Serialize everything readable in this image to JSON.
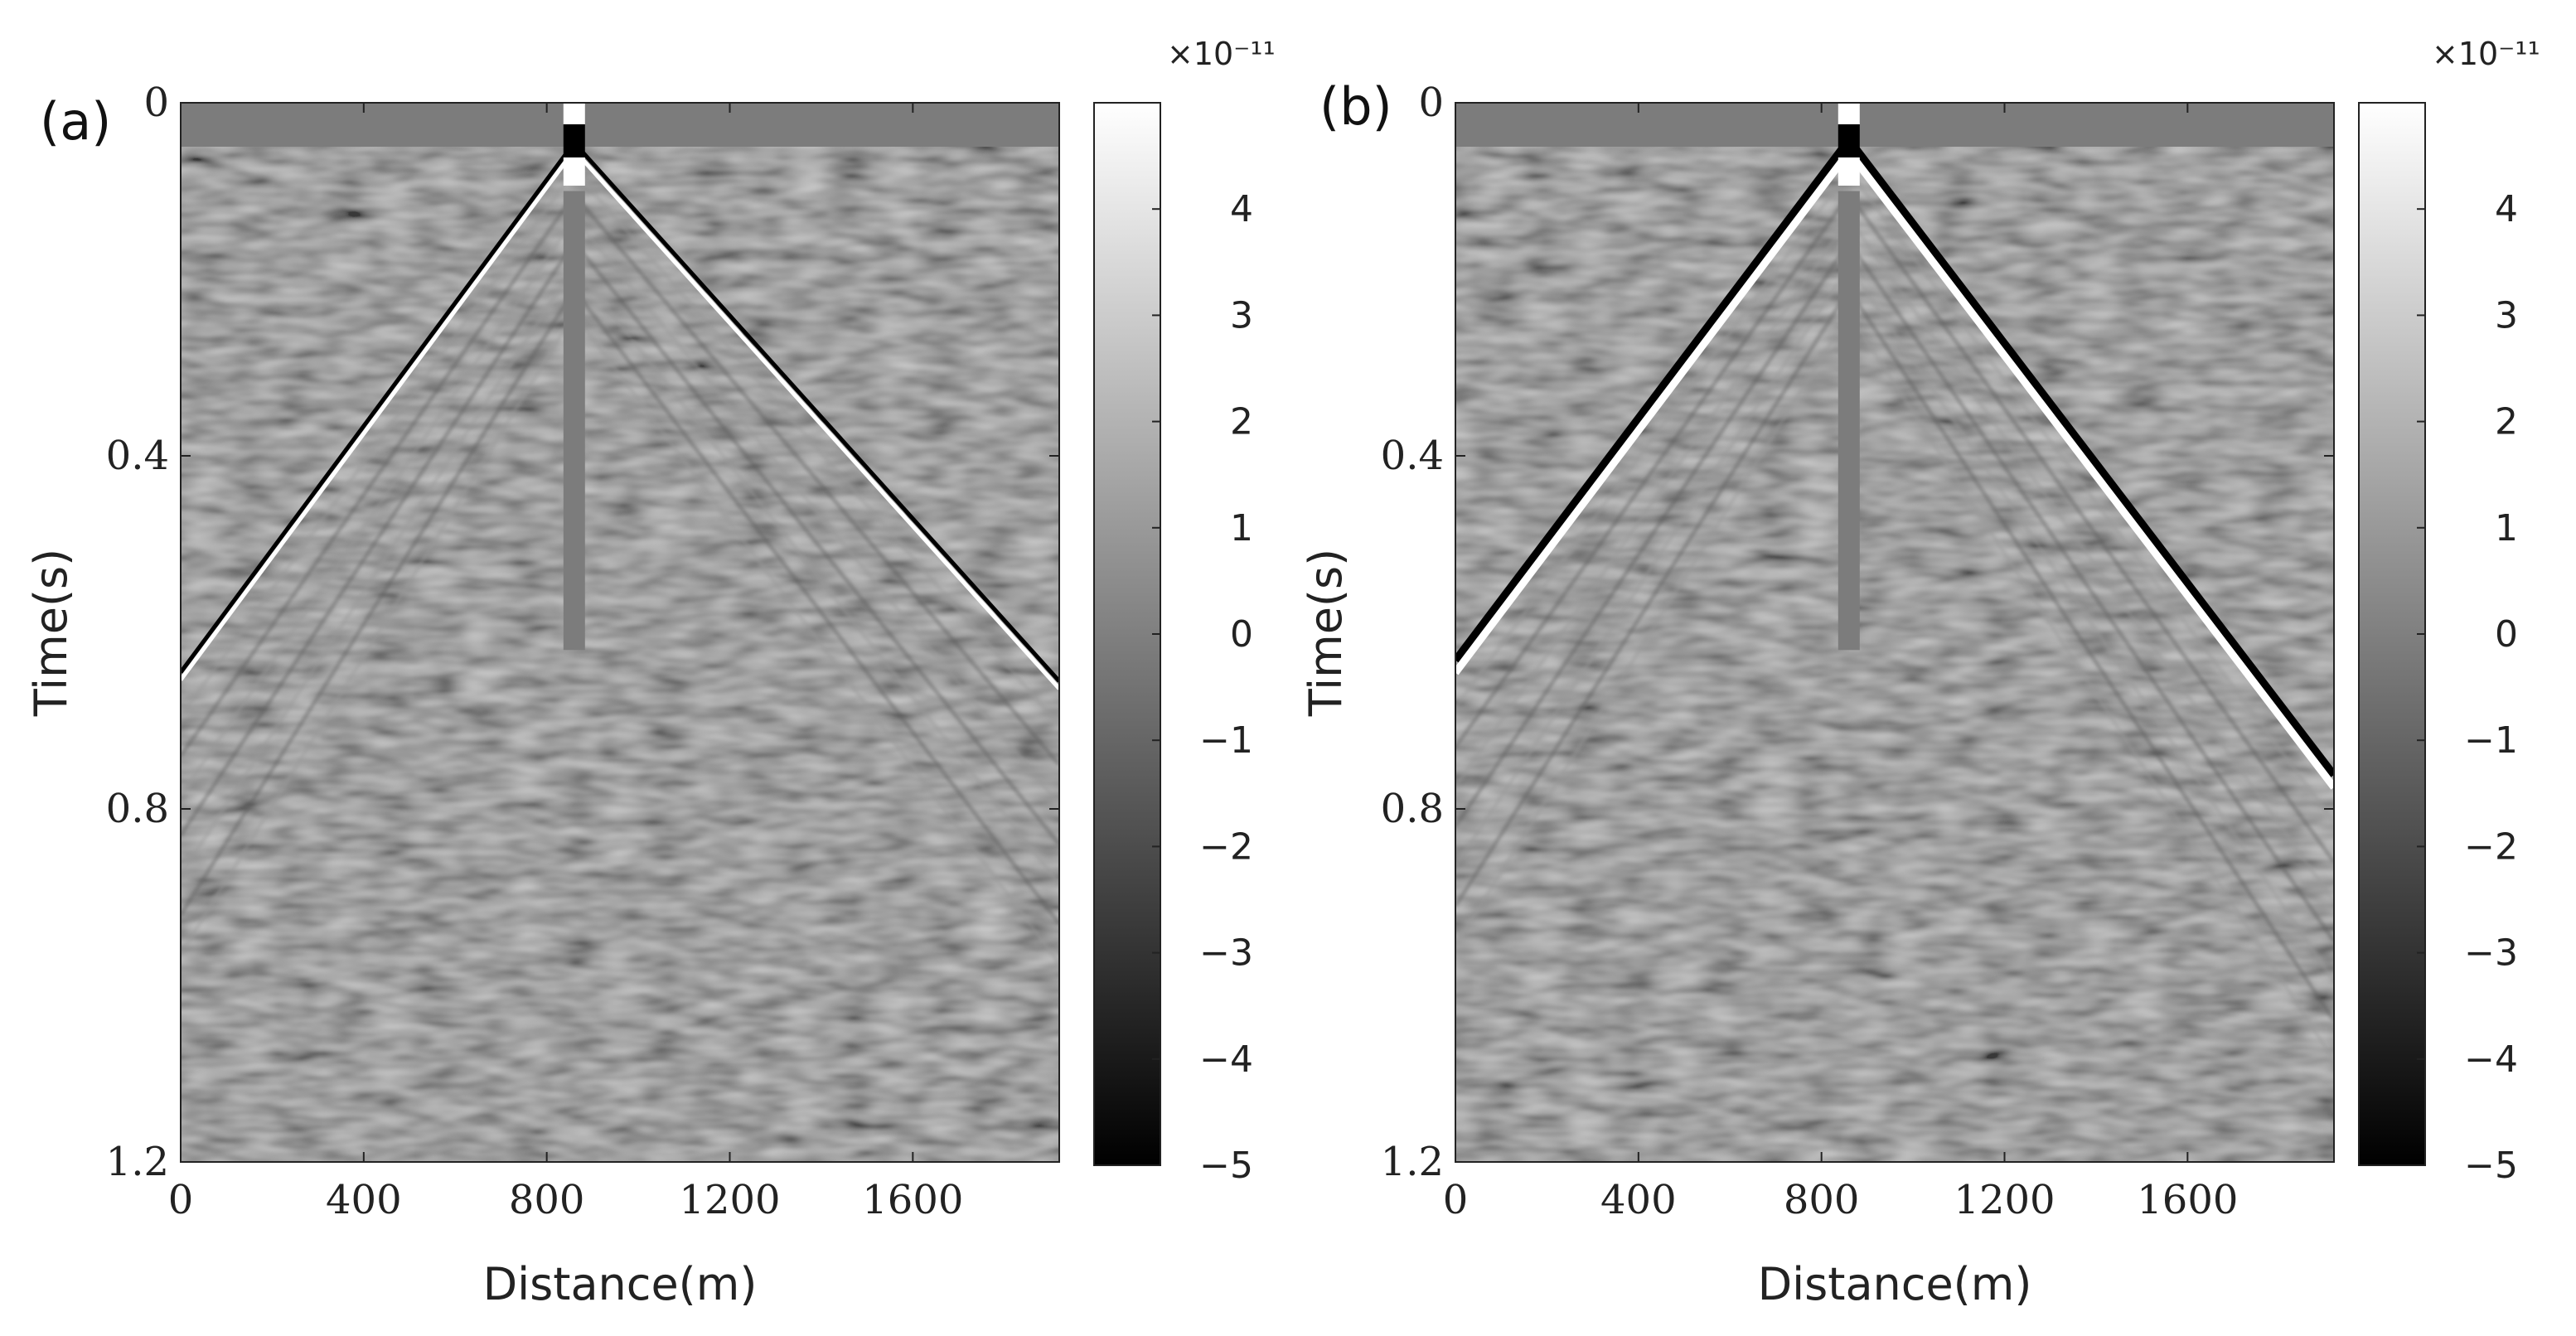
{
  "chart_data": [
    {
      "type": "heatmap",
      "panel_label": "(a)",
      "title": "",
      "xlabel": "Distance(m)",
      "ylabel": "Time(s)",
      "xlim": [
        0,
        1920
      ],
      "ylim": [
        0,
        1.2
      ],
      "y_reversed": true,
      "xticks": [
        0,
        400,
        800,
        1200,
        1600
      ],
      "xtick_labels": [
        "0",
        "400",
        "800",
        "1200",
        "1600"
      ],
      "yticks": [
        0,
        0.4,
        0.8,
        1.2
      ],
      "ytick_labels": [
        "0",
        "0.4",
        "0.8",
        "1.2"
      ],
      "colormap": "gray",
      "colorbar": {
        "range": [
          -5,
          5
        ],
        "ticks": [
          4,
          3,
          2,
          1,
          0,
          -1,
          -2,
          -3,
          -4,
          -5
        ],
        "tick_labels": [
          "4",
          "3",
          "2",
          "1",
          "0",
          "−1",
          "−2",
          "−3",
          "−4",
          "−5"
        ],
        "exponent_label": "×10⁻¹¹"
      },
      "source_position_m": 860,
      "first_arrival_times_s": [
        {
          "distance_m": 0,
          "time_s": 0.65
        },
        {
          "distance_m": 860,
          "time_s": 0.05
        },
        {
          "distance_m": 1920,
          "time_s": 0.66
        }
      ],
      "direct_wave_amplitude": "weak"
    },
    {
      "type": "heatmap",
      "panel_label": "(b)",
      "title": "",
      "xlabel": "Distance(m)",
      "ylabel": "Time(s)",
      "xlim": [
        0,
        1920
      ],
      "ylim": [
        0,
        1.2
      ],
      "y_reversed": true,
      "xticks": [
        0,
        400,
        800,
        1200,
        1600
      ],
      "xtick_labels": [
        "0",
        "400",
        "800",
        "1200",
        "1600"
      ],
      "yticks": [
        0,
        0.4,
        0.8,
        1.2
      ],
      "ytick_labels": [
        "0",
        "0.4",
        "0.8",
        "1.2"
      ],
      "colormap": "gray",
      "colorbar": {
        "range": [
          -5,
          5
        ],
        "ticks": [
          4,
          3,
          2,
          1,
          0,
          -1,
          -2,
          -3,
          -4,
          -5
        ],
        "tick_labels": [
          "4",
          "3",
          "2",
          "1",
          "0",
          "−1",
          "−2",
          "−3",
          "−4",
          "−5"
        ],
        "exponent_label": "×10⁻¹¹"
      },
      "source_position_m": 860,
      "first_arrival_times_s": [
        {
          "distance_m": 0,
          "time_s": 0.64
        },
        {
          "distance_m": 860,
          "time_s": 0.05
        },
        {
          "distance_m": 1920,
          "time_s": 0.77
        }
      ],
      "direct_wave_amplitude": "strong"
    }
  ]
}
